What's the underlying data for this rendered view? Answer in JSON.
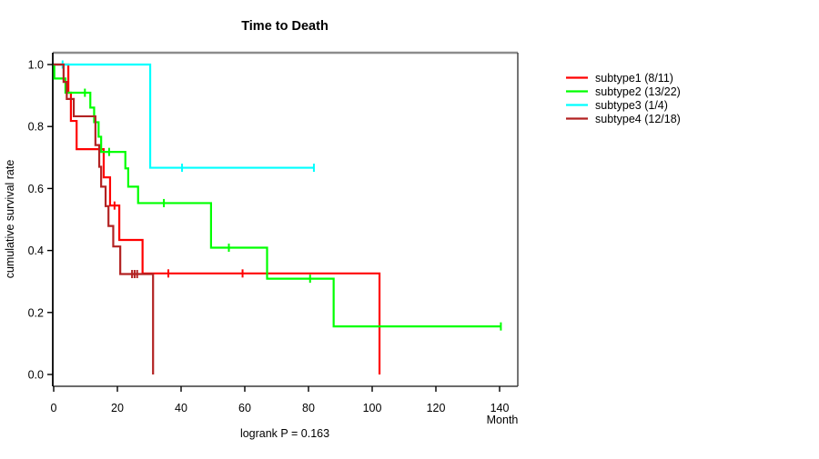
{
  "title": "Time to Death",
  "subtitle_annotation": "logrank P = 0.163",
  "axes": {
    "x_label": "Month",
    "y_label": "cumulative survival rate",
    "x_ticks": [
      0,
      20,
      40,
      60,
      80,
      100,
      120,
      140
    ],
    "y_ticks": [
      "0.0",
      "0.2",
      "0.4",
      "0.6",
      "0.8",
      "1.0"
    ]
  },
  "legend": {
    "items": [
      {
        "label": "subtype1 (8/11)",
        "color": "#ff0000"
      },
      {
        "label": "subtype2 (13/22)",
        "color": "#00ff00"
      },
      {
        "label": "subtype3 (1/4)",
        "color": "#00ffff"
      },
      {
        "label": "subtype4 (12/18)",
        "color": "#b22222"
      }
    ]
  },
  "colors": {
    "box_top": "#8c8c8c",
    "box_sides": "#3a3a3a",
    "axis": "#000000",
    "text": "#000000",
    "background": "#ffffff"
  },
  "chart_data": {
    "type": "line",
    "chart_kind": "kaplan-meier-step",
    "title": "Time to Death",
    "xlabel": "Month",
    "ylabel": "cumulative survival rate",
    "xlim": [
      0,
      146
    ],
    "ylim": [
      0.0,
      1.0
    ],
    "grid": false,
    "legend_position": "right-outside",
    "annotation": "logrank P = 0.163",
    "series": [
      {
        "name": "subtype1 (8/11)",
        "color": "#ff0000",
        "n_patients": 11,
        "n_events": 8,
        "steps": [
          [
            0,
            1.0
          ],
          [
            4.6,
            0.909
          ],
          [
            5.4,
            0.818
          ],
          [
            7.2,
            0.727
          ],
          [
            15.7,
            0.636
          ],
          [
            17.7,
            0.545
          ],
          [
            20.6,
            0.434
          ],
          [
            27.9,
            0.326
          ],
          [
            102.3,
            0.0
          ]
        ],
        "censors": [
          [
            19.1,
            0.545
          ],
          [
            36,
            0.326
          ],
          [
            59.3,
            0.326
          ]
        ],
        "end_month": 102.3
      },
      {
        "name": "subtype2 (13/22)",
        "color": "#00ff00",
        "n_patients": 22,
        "n_events": 13,
        "steps": [
          [
            0,
            1.0
          ],
          [
            0.2,
            0.955
          ],
          [
            3.7,
            0.909
          ],
          [
            11.5,
            0.861
          ],
          [
            12.7,
            0.814
          ],
          [
            14.1,
            0.767
          ],
          [
            14.9,
            0.718
          ],
          [
            22.5,
            0.665
          ],
          [
            23.4,
            0.606
          ],
          [
            26.5,
            0.553
          ],
          [
            49.4,
            0.409
          ],
          [
            67,
            0.309
          ],
          [
            87.9,
            0.155
          ]
        ],
        "censors": [
          [
            9.8,
            0.909
          ],
          [
            17.4,
            0.718
          ],
          [
            34.6,
            0.553
          ],
          [
            55,
            0.409
          ],
          [
            80.5,
            0.309
          ],
          [
            140.4,
            0.155
          ]
        ],
        "end_month": 140.4
      },
      {
        "name": "subtype3 (1/4)",
        "color": "#00ffff",
        "n_patients": 4,
        "n_events": 1,
        "steps": [
          [
            0,
            1.0
          ],
          [
            30.3,
            0.667
          ]
        ],
        "censors": [
          [
            2.8,
            1.0
          ],
          [
            40.3,
            0.667
          ],
          [
            81.7,
            0.667
          ]
        ],
        "end_month": 81.7
      },
      {
        "name": "subtype4 (12/18)",
        "color": "#b22222",
        "n_patients": 18,
        "n_events": 12,
        "steps": [
          [
            0,
            1.0
          ],
          [
            3.1,
            0.944
          ],
          [
            4.1,
            0.889
          ],
          [
            6.3,
            0.833
          ],
          [
            13.1,
            0.74
          ],
          [
            14.3,
            0.67
          ],
          [
            14.9,
            0.606
          ],
          [
            16.3,
            0.543
          ],
          [
            17.2,
            0.479
          ],
          [
            18.7,
            0.413
          ],
          [
            20.9,
            0.324
          ],
          [
            31.2,
            0.0
          ]
        ],
        "censors": [
          [
            24.6,
            0.324
          ],
          [
            25.4,
            0.324
          ],
          [
            26.2,
            0.324
          ]
        ],
        "end_month": 31.2
      }
    ]
  }
}
